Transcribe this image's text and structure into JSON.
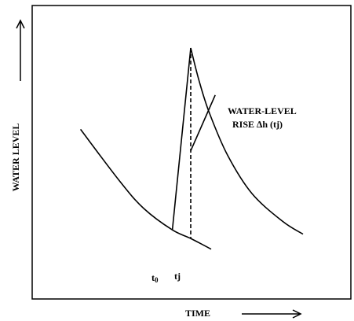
{
  "chart_data": {
    "type": "line",
    "title": "",
    "xlabel": "TIME",
    "ylabel": "WATER LEVEL",
    "x_ticks": [
      {
        "main": "t",
        "sub": "0"
      },
      {
        "main": "t",
        "sub": "j"
      }
    ],
    "annotation": {
      "line1": "WATER-LEVEL",
      "line2": "RISE ∆h (tj)"
    },
    "series": [
      {
        "role": "recession-curve",
        "points": [
          [
            0.1,
            0.62
          ],
          [
            2.0,
            0.38
          ],
          [
            3.2,
            0.25
          ],
          [
            4.6,
            0.15
          ],
          [
            5.5,
            0.11
          ],
          [
            6.5,
            0.06
          ]
        ]
      },
      {
        "role": "recession-after-peak",
        "points": [
          [
            5.5,
            1.0
          ],
          [
            5.9,
            0.85
          ],
          [
            6.4,
            0.7
          ],
          [
            7.3,
            0.5
          ],
          [
            8.5,
            0.32
          ],
          [
            10.0,
            0.19
          ],
          [
            11.0,
            0.13
          ]
        ]
      },
      {
        "role": "rise",
        "points": [
          [
            4.6,
            0.15
          ],
          [
            5.5,
            1.0
          ]
        ]
      },
      {
        "role": "extrapolation",
        "style": "dashed",
        "points": [
          [
            5.5,
            1.0
          ],
          [
            5.5,
            0.11
          ]
        ]
      },
      {
        "role": "leader",
        "points": [
          [
            5.5,
            0.52
          ],
          [
            6.7,
            0.78
          ]
        ]
      }
    ],
    "colors": {
      "line": "#000000"
    },
    "grid": false,
    "legend": "none"
  }
}
